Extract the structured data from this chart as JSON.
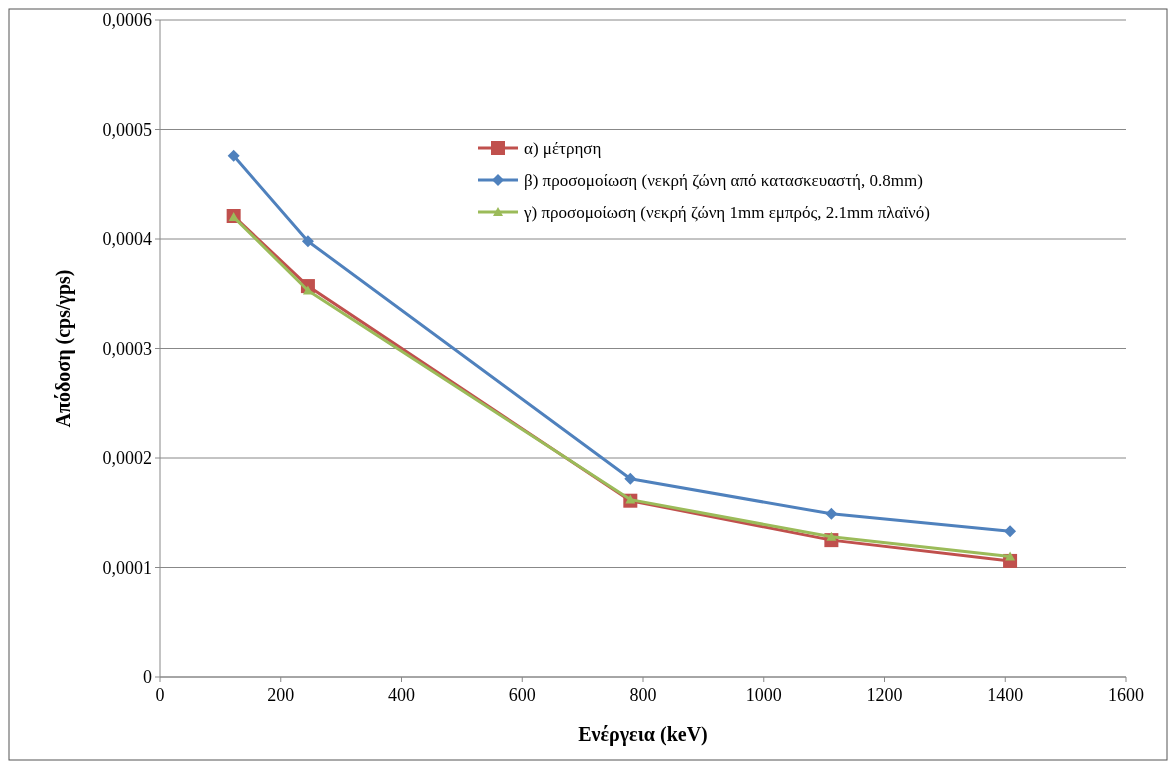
{
  "chart_data": {
    "type": "line",
    "xlabel": "Ενέργεια (keV)",
    "ylabel": "Απόδοση (cps/γps)",
    "x": [
      122,
      245,
      779,
      1112,
      1408
    ],
    "series": [
      {
        "name": "α) μέτρηση",
        "color": "#c0504d",
        "marker": "square",
        "values": [
          0.000421,
          0.000357,
          0.000161,
          0.000125,
          0.000106
        ]
      },
      {
        "name": "β) προσομοίωση (νεκρή ζώνη από κατασκευαστή, 0.8mm)",
        "color": "#4f81bd",
        "marker": "diamond",
        "values": [
          0.000476,
          0.000398,
          0.000181,
          0.000149,
          0.000133
        ]
      },
      {
        "name": "γ) προσομοίωση (νεκρή ζώνη 1mm εμπρός, 2.1mm πλαϊνό)",
        "color": "#9bbb59",
        "marker": "triangle",
        "values": [
          0.00042,
          0.000353,
          0.000162,
          0.000128,
          0.00011
        ]
      }
    ],
    "xlim": [
      0,
      1600
    ],
    "xticks": [
      0,
      200,
      400,
      600,
      800,
      1000,
      1200,
      1400,
      1600
    ],
    "ylim": [
      0,
      0.0006
    ],
    "yticks": [
      0,
      {
        "value": 0.0001,
        "label": "0,0001"
      },
      {
        "value": 0.0002,
        "label": "0,0002"
      },
      {
        "value": 0.0003,
        "label": "0,0003"
      },
      {
        "value": 0.0004,
        "label": "0,0004"
      },
      {
        "value": 0.0005,
        "label": "0,0005"
      },
      {
        "value": 0.0006,
        "label": "0,0006"
      }
    ],
    "grid": "y",
    "legend": "top",
    "line_style": "solid"
  }
}
